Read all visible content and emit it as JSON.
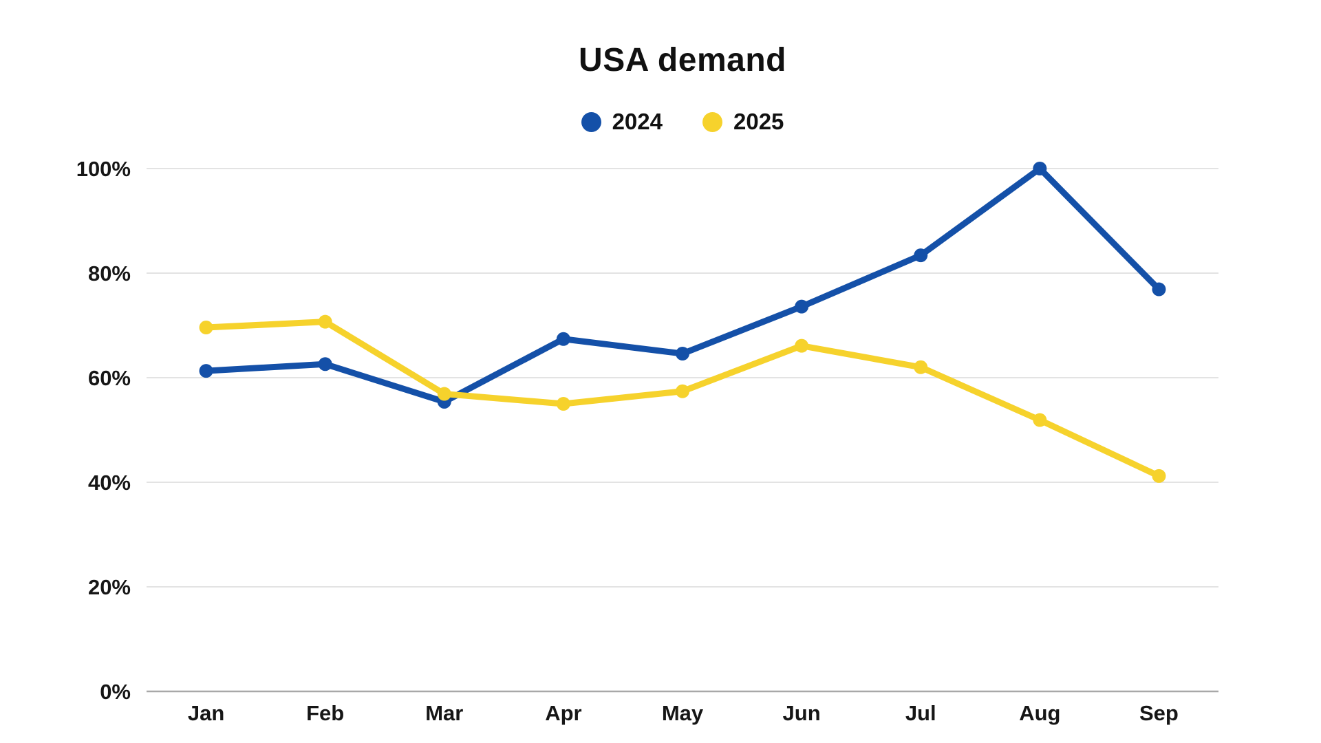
{
  "chart_data": {
    "type": "line",
    "title": "USA demand",
    "categories": [
      "Jan",
      "Feb",
      "Mar",
      "Apr",
      "May",
      "Jun",
      "Jul",
      "Aug",
      "Sep"
    ],
    "series": [
      {
        "name": "2024",
        "color": "#1450A8",
        "values": [
          61.3,
          62.6,
          55.4,
          67.4,
          64.6,
          73.6,
          83.4,
          100,
          76.9
        ]
      },
      {
        "name": "2025",
        "color": "#F6D22C",
        "values": [
          69.6,
          70.7,
          56.9,
          55.0,
          57.4,
          66.1,
          62.0,
          51.9,
          41.2
        ]
      }
    ],
    "xlabel": "",
    "ylabel": "",
    "ylim": [
      0,
      100
    ],
    "y_tick_values": [
      0,
      20,
      40,
      60,
      80,
      100
    ],
    "y_tick_labels": [
      "0%",
      "20%",
      "40%",
      "60%",
      "80%",
      "100%"
    ],
    "grid": "horizontal",
    "legend_position": "top-center",
    "theme": {
      "background": "#ffffff",
      "gridline_color": "#E3E3E3",
      "axis_line_color": "#A8A8A8",
      "text_color": "#161616"
    }
  }
}
